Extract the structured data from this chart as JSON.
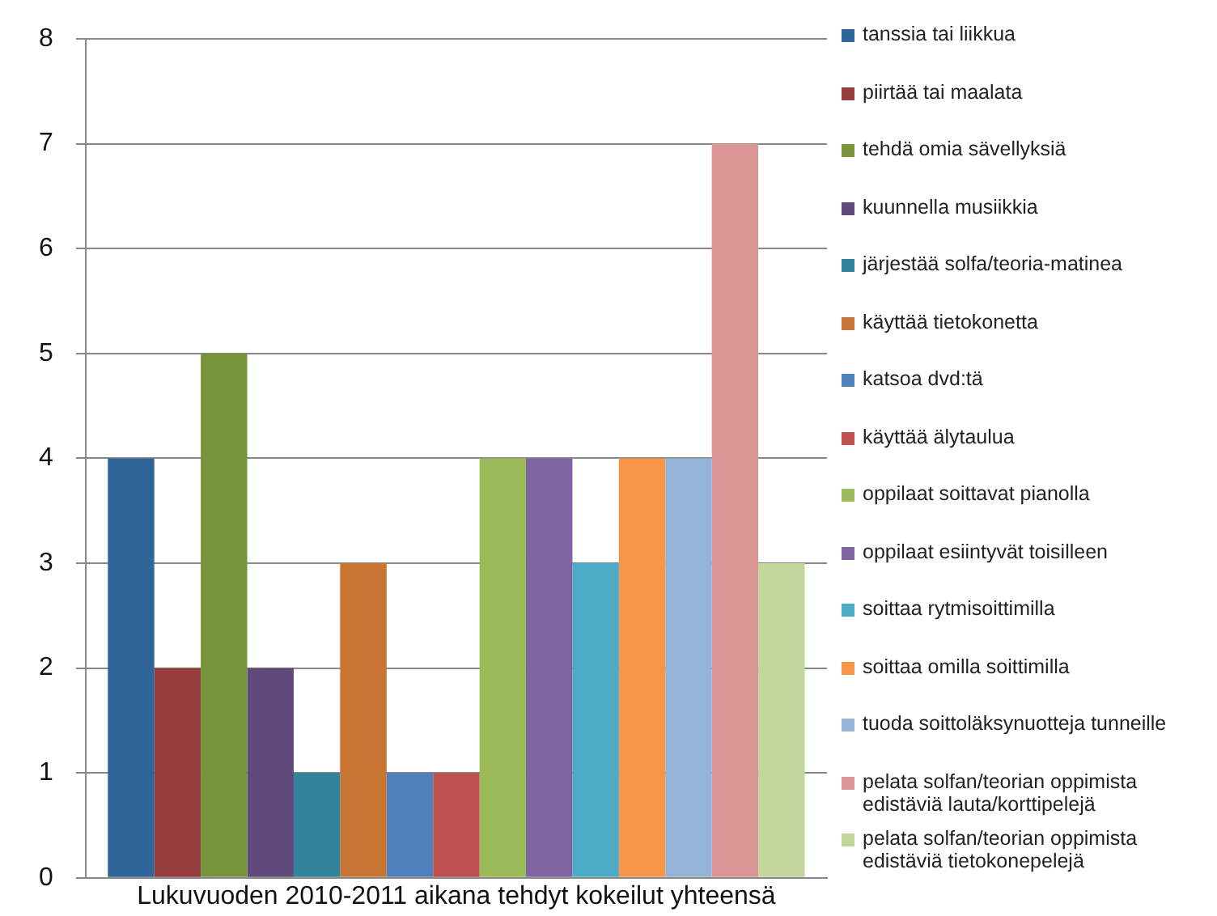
{
  "chart_data": {
    "type": "bar",
    "categories": [
      "Lukuvuoden 2010-2011 aikana tehdyt kokeilut yhteensä"
    ],
    "ylim": [
      0,
      8
    ],
    "yticks": [
      0,
      1,
      2,
      3,
      4,
      5,
      6,
      7,
      8
    ],
    "grid": "y",
    "legend": "right",
    "series": [
      {
        "name": "tanssia tai liikkua",
        "color": "#2f6598",
        "values": [
          4
        ]
      },
      {
        "name": "piirtää tai maalata",
        "color": "#963c3a",
        "values": [
          2
        ]
      },
      {
        "name": "tehdä omia sävellyksiä",
        "color": "#77933c",
        "values": [
          5
        ]
      },
      {
        "name": "kuunnella musiikkia",
        "color": "#604a7b",
        "values": [
          2
        ]
      },
      {
        "name": "järjestää solfa/teoria-matinea",
        "color": "#31849b",
        "values": [
          1
        ]
      },
      {
        "name": "käyttää tietokonetta",
        "color": "#c87533",
        "values": [
          3
        ]
      },
      {
        "name": "katsoa dvd:tä",
        "color": "#4f81bd",
        "values": [
          1
        ]
      },
      {
        "name": "käyttää älytaulua",
        "color": "#c0504d",
        "values": [
          1
        ]
      },
      {
        "name": "oppilaat soittavat pianolla",
        "color": "#9bbb59",
        "values": [
          4
        ]
      },
      {
        "name": "oppilaat esiintyvät toisilleen",
        "color": "#8064a2",
        "values": [
          4
        ]
      },
      {
        "name": "soittaa rytmisoittimilla",
        "color": "#4bacc6",
        "values": [
          3
        ]
      },
      {
        "name": "soittaa omilla soittimilla",
        "color": "#f79646",
        "values": [
          4
        ]
      },
      {
        "name": "tuoda soittoläksynuotteja tunneille",
        "color": "#95b3d7",
        "values": [
          4
        ]
      },
      {
        "name": "pelata solfan/teorian oppimista edistäviä lauta/korttipelejä",
        "color": "#d99694",
        "values": [
          7
        ]
      },
      {
        "name": "pelata solfan/teorian oppimista edistäviä tietokonepelejä",
        "color": "#c3d69b",
        "values": [
          3
        ]
      }
    ]
  }
}
